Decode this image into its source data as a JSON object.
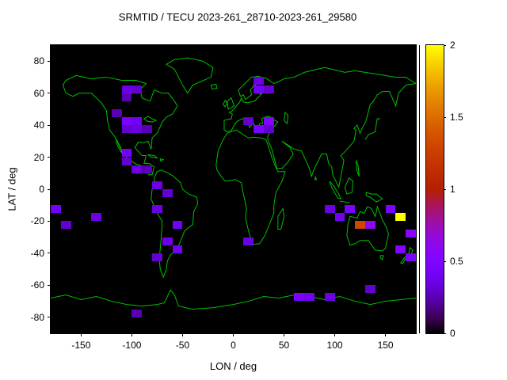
{
  "chart_data": {
    "type": "heatmap",
    "title": "SRMTID / TECU 2023-261_28710-2023-261_29580",
    "xlabel": "LON / deg",
    "ylabel": "LAT / deg",
    "xlim": [
      -180,
      180
    ],
    "ylim": [
      -90,
      90
    ],
    "x_ticks": [
      -150,
      -100,
      -50,
      0,
      50,
      100,
      150
    ],
    "y_ticks": [
      80,
      60,
      40,
      20,
      0,
      -20,
      -40,
      -60,
      -80
    ],
    "grid": false,
    "background_color": "#000000",
    "coastline_color": "#00c000",
    "colorbar": {
      "min": 0,
      "max": 2,
      "ticks": [
        "0",
        "0.5",
        "1",
        "1.5",
        "2"
      ],
      "units": "TECU",
      "colormap": "gnuplot-black-purple-magenta-red-orange-yellow"
    },
    "cell_size": {
      "lon_deg": 10,
      "lat_deg": 5
    },
    "cells": [
      {
        "lon": -105,
        "lat": 62.5,
        "tecu": 0.35
      },
      {
        "lon": -95,
        "lat": 62.5,
        "tecu": 0.3
      },
      {
        "lon": -105,
        "lat": 57.5,
        "tecu": 0.25
      },
      {
        "lon": 25,
        "lat": 67.5,
        "tecu": 0.35
      },
      {
        "lon": 25,
        "lat": 62.5,
        "tecu": 0.4
      },
      {
        "lon": 35,
        "lat": 62.5,
        "tecu": 0.3
      },
      {
        "lon": -115,
        "lat": 47.5,
        "tecu": 0.25
      },
      {
        "lon": -105,
        "lat": 42.5,
        "tecu": 0.45
      },
      {
        "lon": -95,
        "lat": 42.5,
        "tecu": 0.4
      },
      {
        "lon": -105,
        "lat": 37.5,
        "tecu": 0.3
      },
      {
        "lon": -95,
        "lat": 37.5,
        "tecu": 0.35
      },
      {
        "lon": -85,
        "lat": 37.5,
        "tecu": 0.25
      },
      {
        "lon": 15,
        "lat": 42.5,
        "tecu": 0.3
      },
      {
        "lon": 25,
        "lat": 37.5,
        "tecu": 0.45
      },
      {
        "lon": 35,
        "lat": 42.5,
        "tecu": 0.5
      },
      {
        "lon": 35,
        "lat": 37.5,
        "tecu": 0.3
      },
      {
        "lon": -105,
        "lat": 22.5,
        "tecu": 0.4
      },
      {
        "lon": -105,
        "lat": 17.5,
        "tecu": 0.3
      },
      {
        "lon": -95,
        "lat": 12.5,
        "tecu": 0.35
      },
      {
        "lon": -85,
        "lat": 12.5,
        "tecu": 0.25
      },
      {
        "lon": -75,
        "lat": 2.5,
        "tecu": 0.35
      },
      {
        "lon": -65,
        "lat": -2.5,
        "tecu": 0.3
      },
      {
        "lon": -75,
        "lat": -12.5,
        "tecu": 0.35
      },
      {
        "lon": -55,
        "lat": -22.5,
        "tecu": 0.4
      },
      {
        "lon": -65,
        "lat": -32.5,
        "tecu": 0.35
      },
      {
        "lon": -55,
        "lat": -37.5,
        "tecu": 0.4
      },
      {
        "lon": -75,
        "lat": -42.5,
        "tecu": 0.3
      },
      {
        "lon": -175,
        "lat": -12.5,
        "tecu": 0.4
      },
      {
        "lon": -165,
        "lat": -22.5,
        "tecu": 0.3
      },
      {
        "lon": -135,
        "lat": -17.5,
        "tecu": 0.35
      },
      {
        "lon": 15,
        "lat": -32.5,
        "tecu": 0.35
      },
      {
        "lon": 95,
        "lat": -12.5,
        "tecu": 0.35
      },
      {
        "lon": 105,
        "lat": -17.5,
        "tecu": 0.4
      },
      {
        "lon": 115,
        "lat": -12.5,
        "tecu": 0.45
      },
      {
        "lon": 125,
        "lat": -22.5,
        "tecu": 1.3
      },
      {
        "lon": 135,
        "lat": -22.5,
        "tecu": 0.6
      },
      {
        "lon": 165,
        "lat": -17.5,
        "tecu": 2.0
      },
      {
        "lon": 155,
        "lat": -12.5,
        "tecu": 0.45
      },
      {
        "lon": 175,
        "lat": -27.5,
        "tecu": 0.55
      },
      {
        "lon": 165,
        "lat": -37.5,
        "tecu": 0.5
      },
      {
        "lon": 175,
        "lat": -42.5,
        "tecu": 0.45
      },
      {
        "lon": 65,
        "lat": -67.5,
        "tecu": 0.45
      },
      {
        "lon": 75,
        "lat": -67.5,
        "tecu": 0.4
      },
      {
        "lon": 95,
        "lat": -67.5,
        "tecu": 0.35
      },
      {
        "lon": 135,
        "lat": -62.5,
        "tecu": 0.3
      },
      {
        "lon": -95,
        "lat": -77.5,
        "tecu": 0.25
      }
    ]
  }
}
